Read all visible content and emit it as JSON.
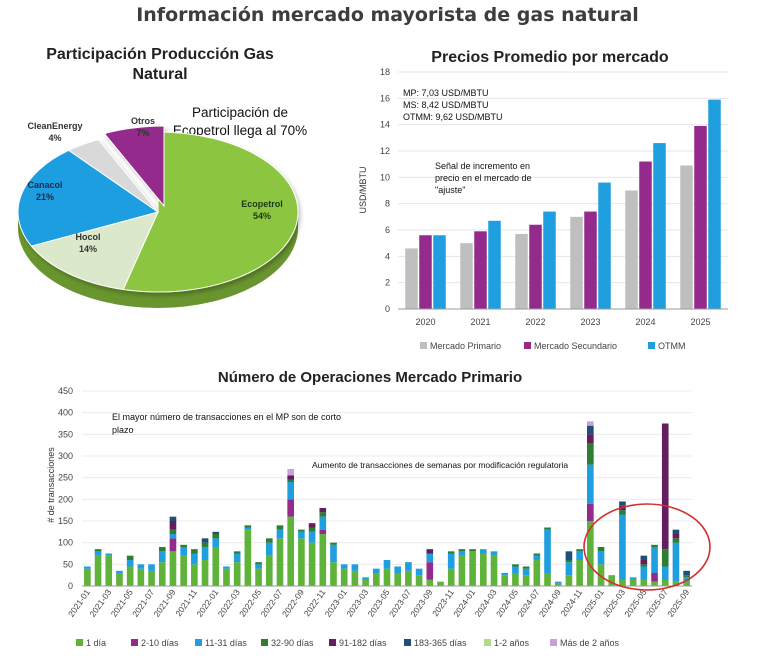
{
  "page": {
    "title": "Información mercado mayorista de gas natural"
  },
  "chart_data": [
    {
      "type": "pie",
      "title": "Participación Producción Gas Natural",
      "annotation": "Participación de Ecopetrol llega al 70%",
      "slices": [
        {
          "name": "Ecopetrol",
          "label": "54%",
          "value": 54,
          "color": "#8cc63f"
        },
        {
          "name": "Hocol",
          "label": "14%",
          "value": 14,
          "color": "#dbe8cc"
        },
        {
          "name": "Canacol",
          "label": "21%",
          "value": 21,
          "color": "#1f9ee0"
        },
        {
          "name": "CleanEnergy",
          "label": "4%",
          "value": 4,
          "color": "#d9d9d9"
        },
        {
          "name": "Otros",
          "label": "7%",
          "value": 7,
          "color": "#932a8c"
        }
      ]
    },
    {
      "type": "bar",
      "title": "Precios Promedio por mercado",
      "ylabel": "USD/MBTU",
      "ylim": [
        0,
        18
      ],
      "yticks": [
        0,
        2,
        4,
        6,
        8,
        10,
        12,
        14,
        16,
        18
      ],
      "categories": [
        "2020",
        "2021",
        "2022",
        "2023",
        "2024",
        "2025"
      ],
      "series": [
        {
          "name": "Mercado Primario",
          "color": "#bfbfbf",
          "values": [
            4.6,
            5.0,
            5.7,
            7.0,
            9.0,
            10.9
          ]
        },
        {
          "name": "Mercado Secundario",
          "color": "#932a8c",
          "values": [
            5.6,
            5.9,
            6.4,
            7.4,
            11.2,
            13.9
          ]
        },
        {
          "name": "OTMM",
          "color": "#1f9ee0",
          "values": [
            5.6,
            6.7,
            7.4,
            9.6,
            12.6,
            15.9
          ]
        }
      ],
      "annotations": [
        "MP: 7,03 USD/MBTU",
        "MS: 8,42 USD/MBTU",
        "OTMM: 9,62 USD/MBTU",
        "Señal de incremento en",
        "precio en el mercado de",
        "\"ajuste\""
      ],
      "legend_position": "bottom"
    },
    {
      "type": "bar",
      "stacked": true,
      "title": "Número de Operaciones Mercado Primario",
      "ylabel": "# de transacciones",
      "ylim": [
        0,
        450
      ],
      "yticks": [
        0,
        50,
        100,
        150,
        200,
        250,
        300,
        350,
        400,
        450
      ],
      "annotations": [
        "El mayor número de transacciones en el MP son de corto",
        "plazo",
        "Aumento de transacciones de semanas por modificación regulatoria"
      ],
      "legend_position": "bottom",
      "x_tick_labels": [
        "2021-01",
        "2021-03",
        "2021-05",
        "2021-07",
        "2021-09",
        "2021-11",
        "2022-01",
        "2022-03",
        "2022-05",
        "2022-07",
        "2022-09",
        "2022-11",
        "2023-01",
        "2023-03",
        "2023-05",
        "2023-07",
        "2023-09",
        "2023-11",
        "2024-01",
        "2024-03",
        "2024-05",
        "2024-07",
        "2024-09",
        "2024-11",
        "2025-01",
        "2025-03",
        "2025-05",
        "2025-07",
        "2025-09"
      ],
      "categories": [
        "2021-01",
        "2021-02",
        "2021-03",
        "2021-04",
        "2021-05",
        "2021-06",
        "2021-07",
        "2021-08",
        "2021-09",
        "2021-10",
        "2021-11",
        "2021-12",
        "2022-01",
        "2022-02",
        "2022-03",
        "2022-04",
        "2022-05",
        "2022-06",
        "2022-07",
        "2022-08",
        "2022-09",
        "2022-10",
        "2022-11",
        "2022-12",
        "2023-01",
        "2023-02",
        "2023-03",
        "2023-04",
        "2023-05",
        "2023-06",
        "2023-07",
        "2023-08",
        "2023-09",
        "2023-10",
        "2023-11",
        "2023-12",
        "2024-01",
        "2024-02",
        "2024-03",
        "2024-04",
        "2024-05",
        "2024-06",
        "2024-07",
        "2024-08",
        "2024-09",
        "2024-10",
        "2024-11",
        "2024-12",
        "2025-01",
        "2025-02",
        "2025-03",
        "2025-04",
        "2025-05",
        "2025-06",
        "2025-07",
        "2025-08",
        "2025-09"
      ],
      "series": [
        {
          "name": "1 día",
          "color": "#5fb33a",
          "values": [
            40,
            70,
            70,
            30,
            45,
            40,
            35,
            55,
            80,
            70,
            50,
            60,
            90,
            40,
            55,
            130,
            40,
            70,
            110,
            160,
            110,
            100,
            120,
            55,
            40,
            35,
            15,
            30,
            40,
            30,
            35,
            25,
            15,
            10,
            40,
            70,
            80,
            75,
            70,
            25,
            30,
            25,
            60,
            30,
            5,
            25,
            60,
            150,
            50,
            25,
            15,
            15,
            15,
            10,
            15,
            10,
            10
          ]
        },
        {
          "name": "2-10 días",
          "color": "#932a8c",
          "values": [
            0,
            0,
            0,
            0,
            0,
            0,
            0,
            0,
            30,
            0,
            0,
            0,
            0,
            0,
            0,
            0,
            0,
            0,
            0,
            40,
            0,
            0,
            10,
            0,
            0,
            0,
            0,
            0,
            0,
            0,
            0,
            0,
            40,
            0,
            0,
            0,
            0,
            0,
            0,
            0,
            0,
            0,
            0,
            0,
            0,
            0,
            0,
            40,
            0,
            0,
            0,
            0,
            0,
            20,
            0,
            0,
            0
          ]
        },
        {
          "name": "11-31 días",
          "color": "#1f9ee0",
          "values": [
            5,
            10,
            5,
            5,
            15,
            10,
            15,
            25,
            10,
            20,
            25,
            30,
            20,
            5,
            20,
            5,
            10,
            30,
            20,
            40,
            15,
            25,
            30,
            40,
            10,
            15,
            5,
            10,
            20,
            15,
            20,
            15,
            20,
            0,
            35,
            10,
            0,
            10,
            10,
            5,
            15,
            15,
            10,
            100,
            5,
            30,
            20,
            90,
            30,
            0,
            150,
            5,
            30,
            60,
            30,
            90,
            10
          ]
        },
        {
          "name": "32-90 días",
          "color": "#2e7d32",
          "values": [
            0,
            5,
            0,
            0,
            10,
            0,
            0,
            10,
            10,
            5,
            10,
            10,
            10,
            0,
            5,
            5,
            5,
            10,
            10,
            5,
            5,
            10,
            10,
            5,
            0,
            0,
            0,
            0,
            0,
            0,
            0,
            0,
            0,
            0,
            5,
            5,
            5,
            0,
            0,
            0,
            5,
            5,
            5,
            5,
            0,
            5,
            5,
            50,
            10,
            0,
            10,
            0,
            5,
            5,
            40,
            10,
            5
          ]
        },
        {
          "name": "91-182 días",
          "color": "#641e5e",
          "values": [
            0,
            0,
            0,
            0,
            0,
            0,
            0,
            0,
            20,
            0,
            0,
            0,
            0,
            0,
            0,
            0,
            0,
            0,
            0,
            10,
            0,
            10,
            10,
            0,
            0,
            0,
            0,
            0,
            0,
            0,
            0,
            0,
            10,
            0,
            0,
            0,
            0,
            0,
            0,
            0,
            0,
            0,
            0,
            0,
            0,
            0,
            0,
            20,
            0,
            0,
            10,
            0,
            10,
            0,
            290,
            10,
            0
          ]
        },
        {
          "name": "183-365 días",
          "color": "#1f4e79",
          "values": [
            0,
            0,
            0,
            0,
            0,
            0,
            0,
            0,
            10,
            0,
            0,
            10,
            5,
            0,
            0,
            0,
            0,
            0,
            0,
            0,
            0,
            0,
            0,
            0,
            0,
            0,
            0,
            0,
            0,
            0,
            0,
            0,
            0,
            0,
            0,
            0,
            0,
            0,
            0,
            0,
            0,
            0,
            0,
            0,
            0,
            20,
            0,
            20,
            0,
            0,
            10,
            0,
            10,
            0,
            0,
            10,
            10
          ]
        },
        {
          "name": "1-2 años",
          "color": "#b5d98a",
          "values": [
            0,
            0,
            0,
            0,
            0,
            0,
            0,
            0,
            0,
            0,
            0,
            0,
            0,
            0,
            0,
            0,
            0,
            0,
            0,
            0,
            0,
            0,
            0,
            0,
            0,
            0,
            0,
            0,
            0,
            0,
            0,
            0,
            0,
            0,
            0,
            0,
            0,
            0,
            0,
            0,
            0,
            0,
            0,
            0,
            0,
            0,
            0,
            0,
            0,
            0,
            0,
            0,
            0,
            0,
            0,
            0,
            0
          ]
        },
        {
          "name": "Más de 2 años",
          "color": "#c9a0dc",
          "values": [
            0,
            0,
            0,
            0,
            0,
            0,
            0,
            0,
            0,
            0,
            0,
            0,
            0,
            0,
            0,
            0,
            0,
            0,
            0,
            15,
            0,
            0,
            0,
            0,
            0,
            0,
            0,
            0,
            0,
            0,
            0,
            0,
            0,
            0,
            0,
            0,
            0,
            0,
            0,
            0,
            0,
            0,
            0,
            0,
            0,
            0,
            0,
            10,
            0,
            0,
            0,
            0,
            0,
            0,
            0,
            0,
            0
          ]
        }
      ]
    }
  ]
}
